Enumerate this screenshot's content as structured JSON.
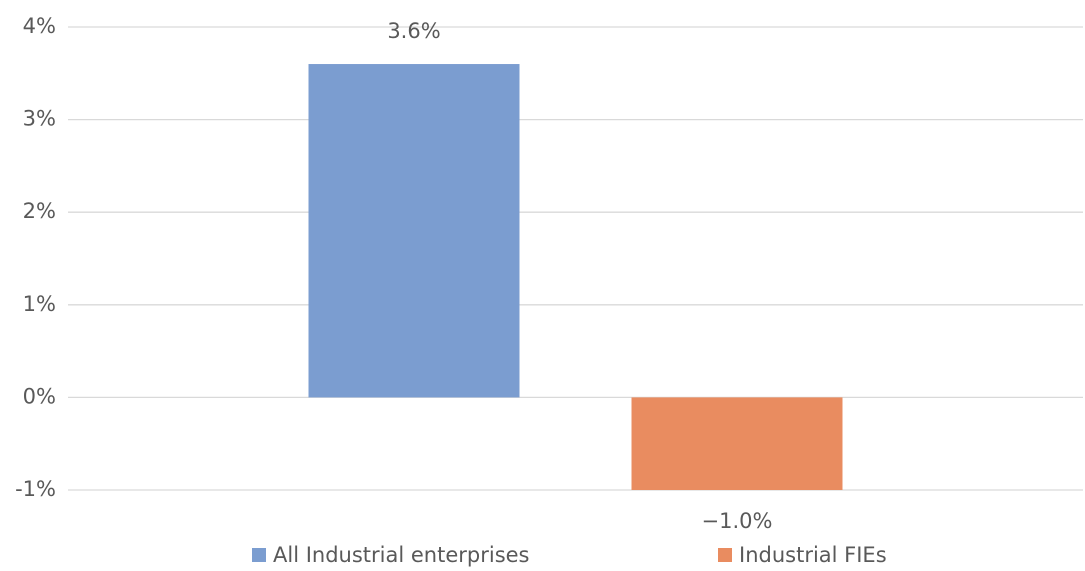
{
  "chart_data": {
    "type": "bar",
    "series": [
      {
        "name": "All Industrial enterprises",
        "color": "#7b9dd0",
        "values": [
          3.6
        ],
        "value_labels": [
          "3.6%"
        ]
      },
      {
        "name": "Industrial FIEs",
        "color": "#e98c60",
        "values": [
          -1.0
        ],
        "value_labels": [
          "−1.0%"
        ]
      }
    ],
    "ylim": [
      -1,
      4
    ],
    "yticks": [
      {
        "value": -1,
        "label": "-1%"
      },
      {
        "value": 0,
        "label": "0%"
      },
      {
        "value": 1,
        "label": "1%"
      },
      {
        "value": 2,
        "label": "2%"
      },
      {
        "value": 3,
        "label": "3%"
      },
      {
        "value": 4,
        "label": "4%"
      }
    ],
    "grid": true
  }
}
